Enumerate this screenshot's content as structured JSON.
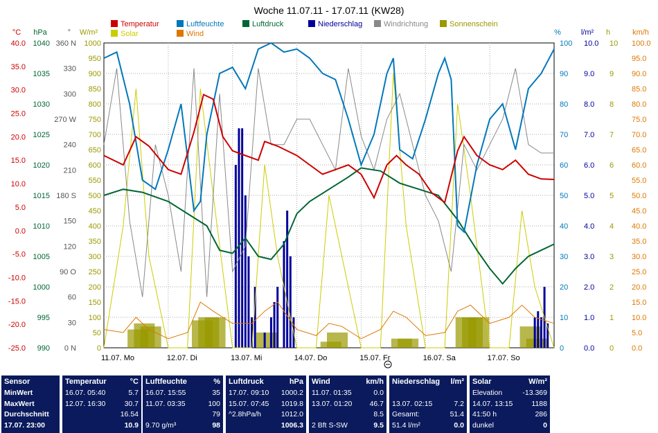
{
  "chart_data": {
    "type": "line",
    "title": "Woche 11.07.11 - 17.07.11 (KW28)",
    "legend": [
      {
        "name": "Temperatur",
        "color": "#cc0000"
      },
      {
        "name": "Luftfeuchte",
        "color": "#0077bb"
      },
      {
        "name": "Luftdruck",
        "color": "#006633"
      },
      {
        "name": "Niederschlag",
        "color": "#000099"
      },
      {
        "name": "Windrichtung",
        "color": "#888888"
      },
      {
        "name": "Sonnenschein",
        "color": "#999900"
      },
      {
        "name": "Solar",
        "color": "#cccc00"
      },
      {
        "name": "Wind",
        "color": "#dd7700"
      }
    ],
    "x_labels": [
      "11.07. Mo",
      "12.07. Di",
      "13.07. Mi",
      "14.07. Do",
      "15.07. Fr",
      "16.07. Sa",
      "17.07. So"
    ],
    "axes": {
      "temperature": {
        "unit": "°C",
        "ticks": [
          "40.0",
          "35.0",
          "30.0",
          "25.0",
          "20.0",
          "15.0",
          "10.0",
          "5.0",
          "0.0",
          "-5.0",
          "-10.0",
          "-15.0",
          "-20.0",
          "-25.0"
        ]
      },
      "pressure": {
        "unit": "hPa",
        "ticks": [
          "1040",
          "1035",
          "1030",
          "1025",
          "1020",
          "1015",
          "1010",
          "1005",
          "1000",
          "995",
          "990"
        ]
      },
      "wind_direction": {
        "unit": "°",
        "ticks": [
          "360 N",
          "330",
          "300",
          "270 W",
          "240",
          "210",
          "180 S",
          "150",
          "120",
          "90 O",
          "60",
          "30",
          "0 N"
        ]
      },
      "solar": {
        "unit": "W/m²",
        "ticks": [
          "1000",
          "950",
          "900",
          "850",
          "800",
          "750",
          "700",
          "650",
          "600",
          "550",
          "500",
          "450",
          "400",
          "350",
          "300",
          "250",
          "200",
          "150",
          "100",
          "50",
          "0"
        ]
      },
      "humidity": {
        "unit": "%",
        "ticks": [
          "100",
          "90",
          "80",
          "70",
          "60",
          "50",
          "40",
          "30",
          "20",
          "10",
          "0"
        ]
      },
      "rain": {
        "unit": "l/m²",
        "ticks": [
          "10.0",
          "9.0",
          "8.0",
          "7.0",
          "6.0",
          "5.0",
          "4.0",
          "3.0",
          "2.0",
          "1.0",
          "0.0"
        ]
      },
      "sunshine": {
        "unit": "h",
        "ticks": [
          "10",
          "9",
          "8",
          "7",
          "6",
          "5",
          "4",
          "3",
          "2",
          "1",
          "0"
        ]
      },
      "wind_speed": {
        "unit": "km/h",
        "ticks": [
          "100.0",
          "95.0",
          "90.0",
          "85.0",
          "80.0",
          "75.0",
          "70.0",
          "65.0",
          "60.0",
          "55.0",
          "50.0",
          "45.0",
          "40.0",
          "35.0",
          "30.0",
          "25.0",
          "20.0",
          "15.0",
          "10.0",
          "5.0",
          "0.0"
        ]
      }
    },
    "series": {
      "temperature": [
        [
          0,
          16
        ],
        [
          0.3,
          14
        ],
        [
          0.5,
          20
        ],
        [
          0.7,
          18
        ],
        [
          1,
          13
        ],
        [
          1.2,
          12
        ],
        [
          1.4,
          21
        ],
        [
          1.55,
          29
        ],
        [
          1.7,
          28
        ],
        [
          1.85,
          20
        ],
        [
          2,
          17
        ],
        [
          2.2,
          16
        ],
        [
          2.4,
          15
        ],
        [
          2.5,
          19
        ],
        [
          2.7,
          18
        ],
        [
          3,
          16
        ],
        [
          3.2,
          14
        ],
        [
          3.4,
          12
        ],
        [
          3.6,
          13
        ],
        [
          3.8,
          14
        ],
        [
          4,
          12
        ],
        [
          4.2,
          7
        ],
        [
          4.4,
          14
        ],
        [
          4.55,
          16
        ],
        [
          4.7,
          14
        ],
        [
          4.9,
          12
        ],
        [
          5.1,
          8
        ],
        [
          5.3,
          6
        ],
        [
          5.5,
          17
        ],
        [
          5.6,
          20
        ],
        [
          5.8,
          16
        ],
        [
          6,
          14
        ],
        [
          6.2,
          13
        ],
        [
          6.4,
          15
        ],
        [
          6.6,
          12
        ],
        [
          6.8,
          11
        ],
        [
          7,
          10.9
        ]
      ],
      "humidity": [
        [
          0,
          95
        ],
        [
          0.2,
          97
        ],
        [
          0.4,
          80
        ],
        [
          0.6,
          55
        ],
        [
          0.8,
          52
        ],
        [
          1,
          65
        ],
        [
          1.2,
          80
        ],
        [
          1.4,
          45
        ],
        [
          1.5,
          48
        ],
        [
          1.6,
          70
        ],
        [
          1.8,
          90
        ],
        [
          2,
          92
        ],
        [
          2.2,
          85
        ],
        [
          2.4,
          98
        ],
        [
          2.6,
          100
        ],
        [
          2.8,
          97
        ],
        [
          3,
          98
        ],
        [
          3.2,
          95
        ],
        [
          3.4,
          90
        ],
        [
          3.6,
          88
        ],
        [
          3.8,
          75
        ],
        [
          4,
          60
        ],
        [
          4.2,
          70
        ],
        [
          4.4,
          90
        ],
        [
          4.5,
          95
        ],
        [
          4.6,
          65
        ],
        [
          4.8,
          62
        ],
        [
          5,
          75
        ],
        [
          5.2,
          90
        ],
        [
          5.3,
          95
        ],
        [
          5.4,
          88
        ],
        [
          5.5,
          40
        ],
        [
          5.6,
          38
        ],
        [
          5.8,
          60
        ],
        [
          6,
          75
        ],
        [
          6.2,
          80
        ],
        [
          6.4,
          65
        ],
        [
          6.6,
          85
        ],
        [
          6.8,
          90
        ],
        [
          7,
          98
        ]
      ],
      "pressure": [
        [
          0,
          1015
        ],
        [
          0.3,
          1016
        ],
        [
          0.6,
          1015.5
        ],
        [
          1,
          1014
        ],
        [
          1.3,
          1012
        ],
        [
          1.6,
          1010
        ],
        [
          1.8,
          1006
        ],
        [
          2,
          1005.5
        ],
        [
          2.2,
          1008
        ],
        [
          2.4,
          1005
        ],
        [
          2.6,
          1004.5
        ],
        [
          2.8,
          1007
        ],
        [
          3,
          1012
        ],
        [
          3.2,
          1014
        ],
        [
          3.5,
          1016
        ],
        [
          3.8,
          1018
        ],
        [
          4,
          1019.5
        ],
        [
          4.3,
          1019
        ],
        [
          4.6,
          1017
        ],
        [
          4.9,
          1016
        ],
        [
          5.2,
          1015
        ],
        [
          5.5,
          1011
        ],
        [
          5.8,
          1006
        ],
        [
          6,
          1003
        ],
        [
          6.2,
          1000.5
        ],
        [
          6.4,
          1003
        ],
        [
          6.6,
          1005
        ],
        [
          6.8,
          1006
        ],
        [
          7,
          1007
        ]
      ],
      "wind_direction": [
        [
          0,
          240
        ],
        [
          0.2,
          330
        ],
        [
          0.4,
          150
        ],
        [
          0.6,
          60
        ],
        [
          0.8,
          240
        ],
        [
          1,
          180
        ],
        [
          1.2,
          90
        ],
        [
          1.4,
          330
        ],
        [
          1.6,
          60
        ],
        [
          1.8,
          300
        ],
        [
          2,
          90
        ],
        [
          2.2,
          120
        ],
        [
          2.4,
          330
        ],
        [
          2.6,
          240
        ],
        [
          2.8,
          240
        ],
        [
          3,
          270
        ],
        [
          3.2,
          270
        ],
        [
          3.4,
          240
        ],
        [
          3.6,
          210
        ],
        [
          3.8,
          330
        ],
        [
          4,
          250
        ],
        [
          4.2,
          210
        ],
        [
          4.4,
          270
        ],
        [
          4.6,
          300
        ],
        [
          4.8,
          240
        ],
        [
          5,
          180
        ],
        [
          5.2,
          150
        ],
        [
          5.4,
          90
        ],
        [
          5.6,
          240
        ],
        [
          5.8,
          210
        ],
        [
          6,
          240
        ],
        [
          6.2,
          270
        ],
        [
          6.4,
          330
        ],
        [
          6.6,
          240
        ],
        [
          6.8,
          230
        ],
        [
          7,
          230
        ]
      ],
      "solar": [
        [
          0,
          0
        ],
        [
          0.3,
          400
        ],
        [
          0.5,
          850
        ],
        [
          0.7,
          300
        ],
        [
          1,
          0
        ],
        [
          1.3,
          0
        ],
        [
          1.5,
          850
        ],
        [
          1.7,
          500
        ],
        [
          2,
          0
        ],
        [
          2.3,
          0
        ],
        [
          2.5,
          600
        ],
        [
          2.7,
          300
        ],
        [
          3,
          0
        ],
        [
          3.3,
          0
        ],
        [
          3.5,
          500
        ],
        [
          3.7,
          300
        ],
        [
          4,
          0
        ],
        [
          4.3,
          0
        ],
        [
          4.5,
          900
        ],
        [
          4.7,
          400
        ],
        [
          5,
          0
        ],
        [
          5.3,
          0
        ],
        [
          5.5,
          800
        ],
        [
          5.7,
          500
        ],
        [
          6,
          0
        ],
        [
          6.3,
          0
        ],
        [
          6.5,
          450
        ],
        [
          6.7,
          200
        ],
        [
          7,
          0
        ]
      ],
      "wind": [
        [
          0,
          6
        ],
        [
          0.3,
          5
        ],
        [
          0.5,
          10
        ],
        [
          0.7,
          6
        ],
        [
          1,
          3
        ],
        [
          1.3,
          5
        ],
        [
          1.5,
          15
        ],
        [
          1.7,
          12
        ],
        [
          2,
          8
        ],
        [
          2.3,
          8
        ],
        [
          2.5,
          12
        ],
        [
          2.7,
          15
        ],
        [
          3,
          6
        ],
        [
          3.3,
          4
        ],
        [
          3.5,
          8
        ],
        [
          3.7,
          7
        ],
        [
          4,
          3
        ],
        [
          4.3,
          6
        ],
        [
          4.5,
          12
        ],
        [
          4.7,
          10
        ],
        [
          5,
          4
        ],
        [
          5.3,
          5
        ],
        [
          5.5,
          12
        ],
        [
          5.7,
          14
        ],
        [
          6,
          8
        ],
        [
          6.3,
          10
        ],
        [
          6.5,
          14
        ],
        [
          6.7,
          10
        ],
        [
          7,
          8
        ]
      ],
      "rain": [
        [
          2.05,
          6
        ],
        [
          2.1,
          7.2
        ],
        [
          2.15,
          7.2
        ],
        [
          2.2,
          5
        ],
        [
          2.25,
          3
        ],
        [
          2.3,
          1
        ],
        [
          2.35,
          2
        ],
        [
          2.5,
          0.5
        ],
        [
          2.6,
          1
        ],
        [
          2.65,
          1.5
        ],
        [
          2.7,
          2
        ],
        [
          2.8,
          3.5
        ],
        [
          2.85,
          4.5
        ],
        [
          2.9,
          3
        ],
        [
          2.95,
          1
        ],
        [
          6.7,
          1
        ],
        [
          6.75,
          1.2
        ],
        [
          6.8,
          1
        ],
        [
          6.85,
          2
        ],
        [
          6.9,
          0.8
        ]
      ],
      "sunshine": [
        [
          0.4,
          0.6
        ],
        [
          0.5,
          0.8
        ],
        [
          0.6,
          0.7
        ],
        [
          1.4,
          0.9
        ],
        [
          1.5,
          1.0
        ],
        [
          1.6,
          1.0
        ],
        [
          2.4,
          0.5
        ],
        [
          3.4,
          0.2
        ],
        [
          3.5,
          0.5
        ],
        [
          4.5,
          0.3
        ],
        [
          4.6,
          0.3
        ],
        [
          5.5,
          1.0
        ],
        [
          5.6,
          1.0
        ],
        [
          5.7,
          1.0
        ],
        [
          6.5,
          0.7
        ],
        [
          6.6,
          0.3
        ]
      ]
    }
  },
  "table": {
    "cols": [
      {
        "header": "Sensor",
        "unit": "",
        "rows": [
          "MinWert",
          "MaxWert",
          "Durchschnitt",
          "17.07. 23:00"
        ]
      },
      {
        "header": "Temperatur",
        "unit": "°C",
        "rows": [
          [
            "16.07.  05:40",
            "5.7"
          ],
          [
            "12.07.  16:30",
            "30.7"
          ],
          [
            "",
            "16.54"
          ],
          [
            "",
            "10.9"
          ]
        ]
      },
      {
        "header": "Luftfeuchte",
        "unit": "%",
        "rows": [
          [
            "16.07.  15:55",
            "35"
          ],
          [
            "11.07.  03:35",
            "100"
          ],
          [
            "",
            "79"
          ],
          [
            "9.70 g/m³",
            "98"
          ]
        ]
      },
      {
        "header": "Luftdruck",
        "unit": "hPa",
        "rows": [
          [
            "17.07.  09:10",
            "1000.2"
          ],
          [
            "15.07.  07:45",
            "1019.8"
          ],
          [
            "^2.8hPa/h",
            "1012.0"
          ],
          [
            "",
            "1006.3"
          ]
        ]
      },
      {
        "header": "Wind",
        "unit": "km/h",
        "rows": [
          [
            "11.07.  01:35",
            "0.0"
          ],
          [
            "13.07.  01:20",
            "46.7"
          ],
          [
            "",
            "8.5"
          ],
          [
            "2 Bft S-SW",
            "9.5"
          ]
        ]
      },
      {
        "header": "Niederschlag",
        "unit": "l/m²",
        "rows": [
          [
            "",
            ""
          ],
          [
            "13.07.  02:15",
            "7.2"
          ],
          [
            "Gesamt:",
            "51.4"
          ],
          [
            "51.4 l/m²",
            "0.0"
          ]
        ]
      },
      {
        "header": "Solar",
        "unit": "W/m²",
        "rows": [
          [
            "Elevation",
            "-13.369"
          ],
          [
            "14.07.  13:15",
            "1188"
          ],
          [
            "41:50 h",
            "286"
          ],
          [
            "dunkel",
            "0"
          ]
        ]
      }
    ]
  }
}
